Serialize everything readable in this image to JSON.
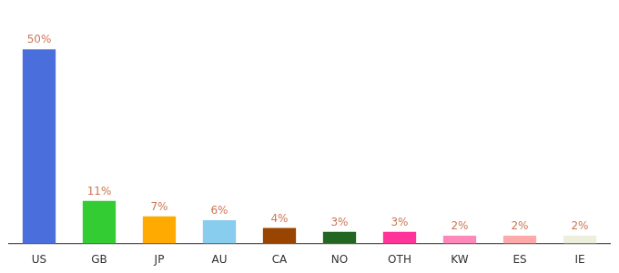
{
  "chart_data": {
    "type": "bar",
    "categories": [
      "US",
      "GB",
      "JP",
      "AU",
      "CA",
      "NO",
      "OTH",
      "KW",
      "ES",
      "IE"
    ],
    "values": [
      50,
      11,
      7,
      6,
      4,
      3,
      3,
      2,
      2,
      2
    ],
    "value_labels": [
      "50%",
      "11%",
      "7%",
      "6%",
      "4%",
      "3%",
      "3%",
      "2%",
      "2%",
      "2%"
    ],
    "colors": [
      "#4a6fdc",
      "#33cc33",
      "#ffaa00",
      "#88ccee",
      "#994400",
      "#226622",
      "#ff3399",
      "#ff88bb",
      "#ffaaaa",
      "#eeeedd"
    ],
    "ylim": [
      0,
      58
    ],
    "grid": false,
    "data_labels": true,
    "tick_labels": "x"
  }
}
